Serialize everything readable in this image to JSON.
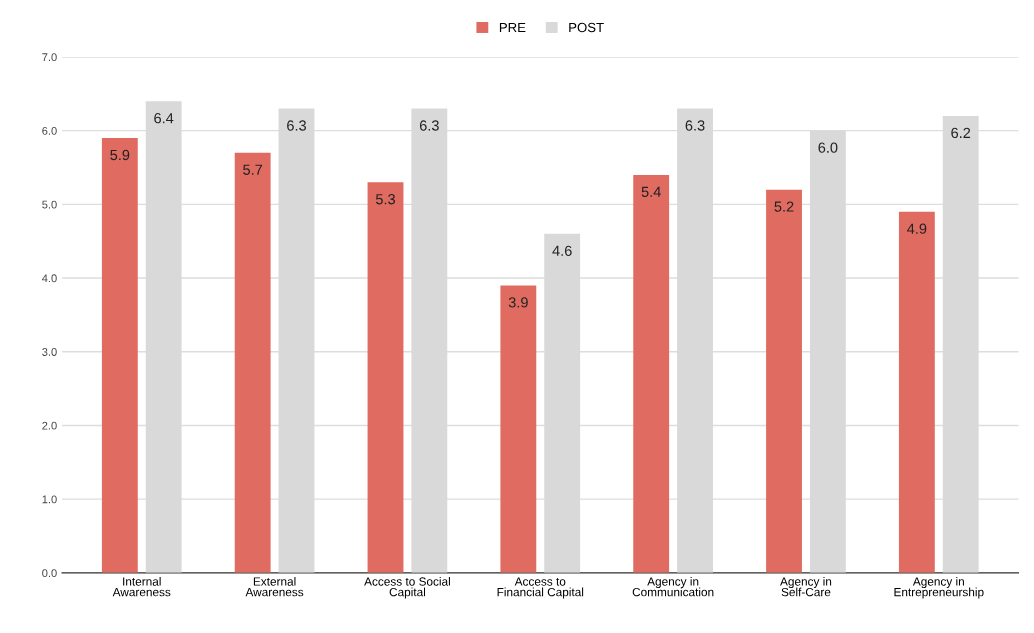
{
  "chart_data": {
    "type": "bar",
    "categories": [
      "Internal\nAwareness",
      "External\nAwareness",
      "Access to Social\nCapital",
      "Access to\nFinancial Capital",
      "Agency in\nCommunication",
      "Agency in\nSelf-Care",
      "Agency in\nEntrepreneurship"
    ],
    "series": [
      {
        "name": "PRE",
        "color": "#e06c61",
        "values": [
          5.9,
          5.7,
          5.3,
          3.9,
          5.4,
          5.2,
          4.9
        ],
        "value_labels": [
          "5.9",
          "5.7",
          "5.3",
          "3.9",
          "5.4",
          "5.2",
          "4.9"
        ]
      },
      {
        "name": "POST",
        "color": "#d9d9d9",
        "values": [
          6.4,
          6.3,
          6.3,
          4.6,
          6.3,
          6.0,
          6.2
        ],
        "value_labels": [
          "6.4",
          "6.3",
          "6.3",
          "4.6",
          "6.3",
          "6.0",
          "6.2"
        ]
      }
    ],
    "ylim": [
      0,
      7
    ],
    "yticks": [
      {
        "value": 0,
        "label": "0.0"
      },
      {
        "value": 1,
        "label": "1.0"
      },
      {
        "value": 2,
        "label": "2.0"
      },
      {
        "value": 3,
        "label": "3.0"
      },
      {
        "value": 4,
        "label": "4.0"
      },
      {
        "value": 5,
        "label": "5.0"
      },
      {
        "value": 6,
        "label": "6.0"
      },
      {
        "value": 7,
        "label": "7.0"
      }
    ],
    "grid": "y",
    "legend": "top"
  }
}
